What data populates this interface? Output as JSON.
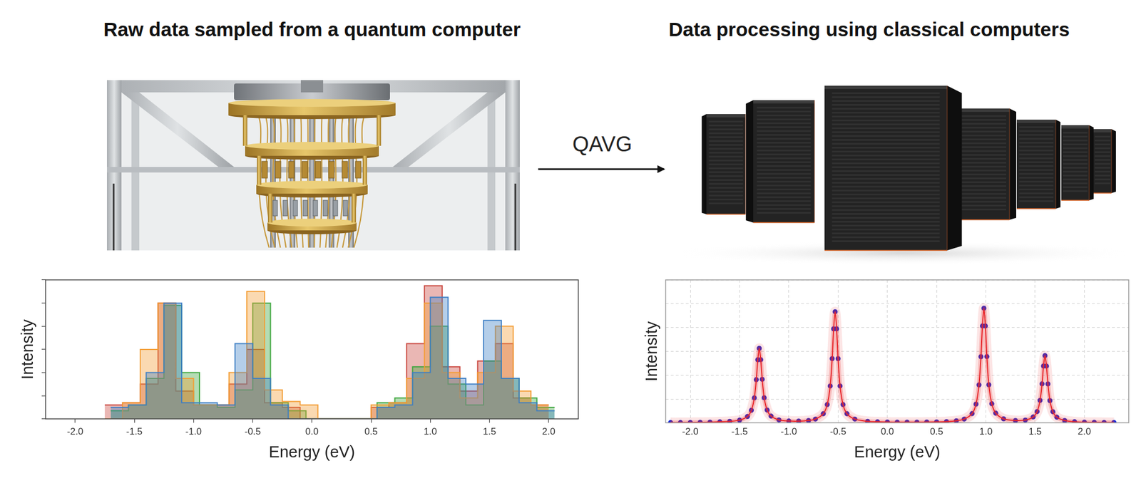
{
  "header": {
    "left_title": "Raw data sampled from a quantum computer",
    "right_title": "Data processing using classical computers"
  },
  "arrow_label": "QAVG",
  "chart_data": [
    {
      "type": "histogram",
      "xlabel": "Energy (eV)",
      "ylabel": "Intensity",
      "xlim": [
        -2.25,
        2.25
      ],
      "xticks": [
        {
          "value": -2,
          "label": "-2.0"
        },
        -1.5,
        {
          "value": -1,
          "label": "-1.0"
        },
        -0.5,
        {
          "value": 0,
          "label": "0.0"
        },
        0.5,
        {
          "value": 1,
          "label": "1.0"
        },
        1.5,
        {
          "value": 2,
          "label": "2.0"
        }
      ],
      "ylim": [
        0,
        1.2
      ],
      "yticks": [
        0,
        0.2,
        0.4,
        0.6,
        0.8,
        1,
        1.2
      ],
      "grid": false,
      "tick_labels": "x",
      "series": [
        {
          "color": "#3b7dc4",
          "bins": [
            -1.7,
            -1.55,
            -1.4,
            -1.25,
            -1.1,
            -0.95,
            -0.8,
            -0.65,
            -0.5,
            -0.35,
            -0.2,
            -0.05,
            0.1,
            0.25,
            0.4,
            0.55,
            0.7,
            0.85,
            1.0,
            1.15,
            1.3,
            1.45,
            1.6,
            1.75,
            1.9,
            2.05
          ],
          "values": [
            0.1,
            0.12,
            0.4,
            1.0,
            0.14,
            0.14,
            0.12,
            0.65,
            0.35,
            0.12,
            0,
            0,
            0,
            0,
            0,
            0.1,
            0.12,
            0.4,
            1.05,
            0.35,
            0.3,
            0.85,
            0.35,
            0.14,
            0.07
          ]
        },
        {
          "color": "#f39c32",
          "bins": [
            -1.75,
            -1.6,
            -1.45,
            -1.3,
            -1.15,
            -1.0,
            -0.85,
            -0.7,
            -0.55,
            -0.4,
            -0.25,
            -0.1,
            0.05,
            0.2,
            0.35,
            0.5,
            0.65,
            0.8,
            0.95,
            1.1,
            1.25,
            1.4,
            1.55,
            1.7,
            1.85,
            2.0
          ],
          "values": [
            0,
            0.14,
            0.6,
            1.0,
            0.35,
            0.12,
            0.12,
            0.4,
            1.1,
            0.25,
            0.15,
            0.12,
            0,
            0,
            0,
            0.12,
            0.14,
            0.35,
            1.0,
            0.4,
            0.18,
            0.4,
            0.8,
            0.24,
            0.12
          ]
        },
        {
          "color": "#3aa43a",
          "bins": [
            -1.7,
            -1.55,
            -1.4,
            -1.25,
            -1.1,
            -0.95,
            -0.8,
            -0.65,
            -0.5,
            -0.35,
            -0.2,
            -0.05,
            0.1,
            0.25,
            0.4,
            0.55,
            0.7,
            0.85,
            1.0,
            1.15,
            1.3,
            1.45,
            1.6,
            1.75,
            1.9,
            2.05
          ],
          "values": [
            0.07,
            0.12,
            0.35,
            0.98,
            0.4,
            0.12,
            0.1,
            0.25,
            1.0,
            0.14,
            0.07,
            0,
            0,
            0,
            0,
            0.14,
            0.18,
            0.45,
            0.8,
            0.3,
            0.12,
            0.5,
            0.35,
            0.18,
            0.1
          ]
        },
        {
          "color": "#c8423a",
          "bins": [
            -1.75,
            -1.6,
            -1.45,
            -1.3,
            -1.15,
            -1.0,
            -0.85,
            -0.7,
            -0.55,
            -0.4,
            -0.25,
            -0.1,
            0.05,
            0.2,
            0.35,
            0.5,
            0.65,
            0.8,
            0.95,
            1.1,
            1.25,
            1.4,
            1.55,
            1.7,
            1.85,
            2.0
          ],
          "values": [
            0.12,
            0.14,
            0.3,
            1.0,
            0.24,
            0.12,
            0.12,
            0.3,
            0.6,
            0.14,
            0.1,
            0,
            0,
            0,
            0,
            0.1,
            0.14,
            0.65,
            1.15,
            0.45,
            0.24,
            0.5,
            0.65,
            0.18,
            0.12
          ]
        }
      ]
    },
    {
      "type": "line",
      "xlabel": "Energy (eV)",
      "ylabel": "Intensity",
      "xlim": [
        -2.25,
        2.45
      ],
      "xticks": [
        {
          "value": -2,
          "label": "-2.0"
        },
        -1.5,
        {
          "value": -1,
          "label": "-1.0"
        },
        -0.5,
        {
          "value": 0,
          "label": "0.0"
        },
        0.5,
        {
          "value": 1,
          "label": "1.0"
        },
        1.5,
        {
          "value": 2,
          "label": "2.0"
        }
      ],
      "ylim": [
        0,
        1.2
      ],
      "yticks": [
        0,
        0.2,
        0.4,
        0.6,
        0.8,
        1,
        1.2
      ],
      "grid": true,
      "tick_labels": "x",
      "x": [
        -2.2,
        -2.1,
        -2.0,
        -1.9,
        -1.8,
        -1.7,
        -1.6,
        -1.5,
        -1.42,
        -1.38,
        -1.35,
        -1.33,
        -1.315,
        -1.3,
        -1.285,
        -1.27,
        -1.25,
        -1.22,
        -1.18,
        -1.1,
        -1.0,
        -0.9,
        -0.8,
        -0.73,
        -0.65,
        -0.61,
        -0.58,
        -0.56,
        -0.545,
        -0.53,
        -0.515,
        -0.5,
        -0.48,
        -0.45,
        -0.41,
        -0.33,
        -0.2,
        -0.1,
        0.0,
        0.1,
        0.2,
        0.3,
        0.4,
        0.5,
        0.6,
        0.7,
        0.78,
        0.86,
        0.9,
        0.93,
        0.95,
        0.965,
        0.98,
        0.995,
        1.01,
        1.03,
        1.06,
        1.1,
        1.18,
        1.3,
        1.4,
        1.48,
        1.52,
        1.55,
        1.57,
        1.585,
        1.6,
        1.615,
        1.63,
        1.65,
        1.68,
        1.72,
        1.8,
        1.9,
        2.0,
        2.1,
        2.2,
        2.3
      ],
      "series": [
        {
          "type": "line",
          "color": "#e8262b",
          "marker": "none",
          "line_style": "solid",
          "values": [
            0.002,
            0.002,
            0.003,
            0.004,
            0.005,
            0.008,
            0.012,
            0.022,
            0.053,
            0.105,
            0.209,
            0.362,
            0.529,
            0.625,
            0.53,
            0.365,
            0.21,
            0.107,
            0.056,
            0.024,
            0.015,
            0.014,
            0.019,
            0.031,
            0.076,
            0.153,
            0.309,
            0.539,
            0.789,
            0.933,
            0.789,
            0.539,
            0.309,
            0.153,
            0.076,
            0.031,
            0.012,
            0.008,
            0.006,
            0.005,
            0.005,
            0.005,
            0.006,
            0.007,
            0.01,
            0.017,
            0.031,
            0.077,
            0.157,
            0.318,
            0.555,
            0.813,
            0.962,
            0.813,
            0.556,
            0.319,
            0.16,
            0.081,
            0.033,
            0.019,
            0.023,
            0.049,
            0.094,
            0.188,
            0.327,
            0.477,
            0.564,
            0.476,
            0.326,
            0.186,
            0.093,
            0.047,
            0.019,
            0.009,
            0.005,
            0.004,
            0.003,
            0.003
          ]
        },
        {
          "type": "scatter",
          "color": "#1b2bd6",
          "marker": "circle",
          "values": [
            0.002,
            0.002,
            0.003,
            0.004,
            0.005,
            0.008,
            0.012,
            0.022,
            0.053,
            0.105,
            0.209,
            0.362,
            0.529,
            0.625,
            0.53,
            0.365,
            0.21,
            0.107,
            0.056,
            0.024,
            0.015,
            0.014,
            0.019,
            0.031,
            0.076,
            0.153,
            0.309,
            0.539,
            0.789,
            0.933,
            0.789,
            0.539,
            0.309,
            0.153,
            0.076,
            0.031,
            0.012,
            0.008,
            0.006,
            0.005,
            0.005,
            0.005,
            0.006,
            0.007,
            0.01,
            0.017,
            0.031,
            0.077,
            0.157,
            0.318,
            0.555,
            0.813,
            0.962,
            0.813,
            0.556,
            0.319,
            0.16,
            0.081,
            0.033,
            0.019,
            0.023,
            0.049,
            0.094,
            0.188,
            0.327,
            0.477,
            0.564,
            0.476,
            0.326,
            0.186,
            0.093,
            0.047,
            0.019,
            0.009,
            0.005,
            0.004,
            0.003,
            0.003
          ]
        }
      ]
    }
  ]
}
